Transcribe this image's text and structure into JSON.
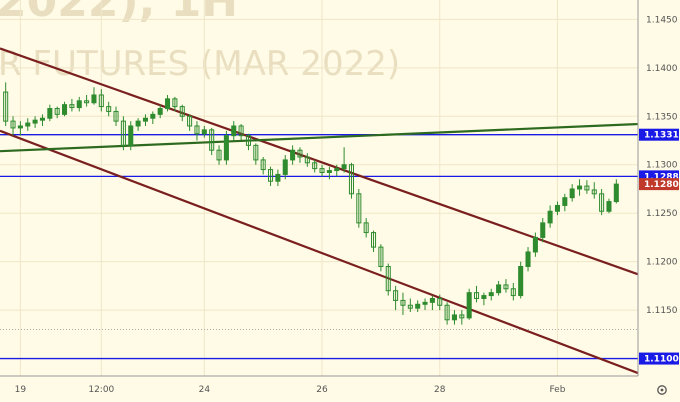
{
  "watermark": {
    "line1": "2022),   1H",
    "line2": "R FUTURES (MAR 2022)"
  },
  "colors": {
    "background": "#fffbe6",
    "axis_bg": "#fffbe6",
    "grid": "#f0e6c8",
    "candle": "#2e8b2e",
    "hline": "#1a1ae6",
    "channel": "#7a1f1f",
    "trend": "#2d6a1f",
    "price_tag": "#c0392b",
    "dotted": "#aaaaaa"
  },
  "settings_icon": "gear-icon",
  "chart_data": {
    "type": "candlestick",
    "title": "",
    "xlabel": "",
    "ylabel": "",
    "ylim": [
      1.1082,
      1.147
    ],
    "y_ticks": [
      1.145,
      1.14,
      1.135,
      1.13,
      1.125,
      1.12,
      1.115,
      1.11
    ],
    "y_tick_labels": [
      "1.1450",
      "1.1400",
      "1.1350",
      "1.1300",
      "1.1250",
      "1.1200",
      "1.1150",
      "1.1100"
    ],
    "x_ticks": [
      {
        "label": "19",
        "i": 2
      },
      {
        "label": "12:00",
        "i": 13
      },
      {
        "label": "24",
        "i": 27
      },
      {
        "label": "26",
        "i": 43
      },
      {
        "label": "28",
        "i": 59
      },
      {
        "label": "Feb",
        "i": 75
      }
    ],
    "horizontal_levels": [
      {
        "value": 1.1331,
        "label": "1.1331",
        "color": "#1a1ae6"
      },
      {
        "value": 1.1288,
        "label": "1.1288",
        "color": "#1a1ae6"
      },
      {
        "value": 1.11,
        "label": "1.1100",
        "color": "#1a1ae6"
      }
    ],
    "last_price": {
      "value": 1.128,
      "label": "1.1280"
    },
    "dotted_level": 1.113,
    "trendlines": [
      {
        "name": "channel-upper",
        "from": [
          0,
          1.142
        ],
        "to": [
          86,
          1.1187
        ]
      },
      {
        "name": "channel-lower",
        "from": [
          0,
          1.1335
        ],
        "to": [
          86,
          1.1085
        ]
      },
      {
        "name": "rising-line",
        "from": [
          0,
          1.1314
        ],
        "to": [
          86,
          1.1342
        ]
      }
    ],
    "candles": [
      [
        1.1375,
        1.1385,
        1.134,
        1.1345
      ],
      [
        1.1345,
        1.135,
        1.133,
        1.1338
      ],
      [
        1.1338,
        1.1345,
        1.133,
        1.134
      ],
      [
        1.134,
        1.1348,
        1.1335,
        1.1343
      ],
      [
        1.1343,
        1.135,
        1.1338,
        1.1346
      ],
      [
        1.1346,
        1.1352,
        1.134,
        1.1348
      ],
      [
        1.1348,
        1.1362,
        1.1345,
        1.1358
      ],
      [
        1.1358,
        1.136,
        1.1348,
        1.1352
      ],
      [
        1.1352,
        1.1365,
        1.135,
        1.1362
      ],
      [
        1.1362,
        1.1368,
        1.1355,
        1.1359
      ],
      [
        1.1359,
        1.137,
        1.1355,
        1.1366
      ],
      [
        1.1366,
        1.1372,
        1.136,
        1.1364
      ],
      [
        1.1364,
        1.138,
        1.1362,
        1.1372
      ],
      [
        1.1372,
        1.1378,
        1.1355,
        1.136
      ],
      [
        1.136,
        1.1365,
        1.135,
        1.1355
      ],
      [
        1.1355,
        1.136,
        1.134,
        1.1345
      ],
      [
        1.1345,
        1.135,
        1.1315,
        1.132
      ],
      [
        1.132,
        1.1345,
        1.1315,
        1.134
      ],
      [
        1.134,
        1.1348,
        1.1335,
        1.1345
      ],
      [
        1.1345,
        1.1352,
        1.134,
        1.1348
      ],
      [
        1.1348,
        1.1355,
        1.1342,
        1.1352
      ],
      [
        1.1352,
        1.1362,
        1.1348,
        1.1358
      ],
      [
        1.1358,
        1.1372,
        1.1355,
        1.1368
      ],
      [
        1.1368,
        1.137,
        1.1355,
        1.136
      ],
      [
        1.136,
        1.1362,
        1.1345,
        1.135
      ],
      [
        1.135,
        1.1352,
        1.1335,
        1.134
      ],
      [
        1.134,
        1.1345,
        1.1325,
        1.1332
      ],
      [
        1.1332,
        1.134,
        1.1328,
        1.1336
      ],
      [
        1.1336,
        1.1338,
        1.131,
        1.1315
      ],
      [
        1.1315,
        1.132,
        1.13,
        1.1305
      ],
      [
        1.1305,
        1.1335,
        1.13,
        1.133
      ],
      [
        1.133,
        1.1345,
        1.1325,
        1.134
      ],
      [
        1.134,
        1.1342,
        1.1325,
        1.133
      ],
      [
        1.133,
        1.1332,
        1.1315,
        1.132
      ],
      [
        1.132,
        1.1322,
        1.13,
        1.1305
      ],
      [
        1.1305,
        1.1308,
        1.129,
        1.1295
      ],
      [
        1.1295,
        1.1298,
        1.1278,
        1.1283
      ],
      [
        1.1283,
        1.1295,
        1.1278,
        1.129
      ],
      [
        1.129,
        1.131,
        1.1285,
        1.1305
      ],
      [
        1.1305,
        1.132,
        1.13,
        1.1315
      ],
      [
        1.1315,
        1.1318,
        1.1302,
        1.1308
      ],
      [
        1.1308,
        1.1312,
        1.1298,
        1.1302
      ],
      [
        1.1302,
        1.1305,
        1.1292,
        1.1296
      ],
      [
        1.1296,
        1.13,
        1.1288,
        1.1292
      ],
      [
        1.1292,
        1.1298,
        1.1285,
        1.1294
      ],
      [
        1.1294,
        1.13,
        1.1288,
        1.1296
      ],
      [
        1.1296,
        1.1318,
        1.1292,
        1.13
      ],
      [
        1.13,
        1.1302,
        1.1265,
        1.127
      ],
      [
        1.127,
        1.1275,
        1.1235,
        1.124
      ],
      [
        1.124,
        1.1245,
        1.1225,
        1.123
      ],
      [
        1.123,
        1.1232,
        1.121,
        1.1215
      ],
      [
        1.1215,
        1.1218,
        1.119,
        1.1195
      ],
      [
        1.1195,
        1.1198,
        1.1165,
        1.117
      ],
      [
        1.117,
        1.1175,
        1.115,
        1.116
      ],
      [
        1.116,
        1.1168,
        1.1145,
        1.1155
      ],
      [
        1.1155,
        1.1162,
        1.1148,
        1.1152
      ],
      [
        1.1152,
        1.116,
        1.1148,
        1.1156
      ],
      [
        1.1156,
        1.1162,
        1.115,
        1.1158
      ],
      [
        1.1158,
        1.1165,
        1.115,
        1.1162
      ],
      [
        1.1162,
        1.1166,
        1.115,
        1.1155
      ],
      [
        1.1155,
        1.1158,
        1.1135,
        1.114
      ],
      [
        1.114,
        1.115,
        1.1135,
        1.1145
      ],
      [
        1.1145,
        1.115,
        1.1135,
        1.1142
      ],
      [
        1.1142,
        1.1172,
        1.114,
        1.1168
      ],
      [
        1.1168,
        1.1175,
        1.1158,
        1.1162
      ],
      [
        1.1162,
        1.1168,
        1.1155,
        1.1165
      ],
      [
        1.1165,
        1.1172,
        1.116,
        1.1168
      ],
      [
        1.1168,
        1.118,
        1.1165,
        1.1176
      ],
      [
        1.1176,
        1.1182,
        1.1168,
        1.1172
      ],
      [
        1.1172,
        1.1178,
        1.116,
        1.1165
      ],
      [
        1.1165,
        1.12,
        1.1162,
        1.1195
      ],
      [
        1.1195,
        1.1215,
        1.119,
        1.121
      ],
      [
        1.121,
        1.123,
        1.1205,
        1.1225
      ],
      [
        1.1225,
        1.1245,
        1.122,
        1.124
      ],
      [
        1.124,
        1.1258,
        1.1235,
        1.1252
      ],
      [
        1.1252,
        1.1262,
        1.1248,
        1.1258
      ],
      [
        1.1258,
        1.127,
        1.1252,
        1.1266
      ],
      [
        1.1266,
        1.128,
        1.1262,
        1.1275
      ],
      [
        1.1275,
        1.1285,
        1.1268,
        1.1278
      ],
      [
        1.1278,
        1.1284,
        1.127,
        1.1274
      ],
      [
        1.1274,
        1.1282,
        1.1265,
        1.127
      ],
      [
        1.127,
        1.1275,
        1.1248,
        1.1252
      ],
      [
        1.1252,
        1.1265,
        1.125,
        1.1262
      ],
      [
        1.1262,
        1.1285,
        1.126,
        1.128
      ]
    ]
  }
}
